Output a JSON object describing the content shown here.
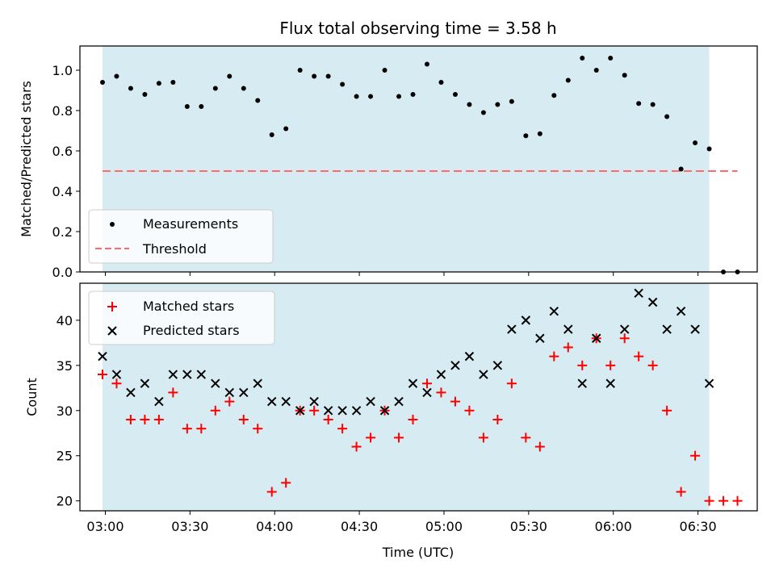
{
  "chart_data": [
    {
      "type": "scatter",
      "title": "Flux total observing time = 3.58 h",
      "ylabel": "Matched/Predicted stars",
      "xlabel": "",
      "ylim": [
        0,
        1.12
      ],
      "yticks": [
        0.0,
        0.2,
        0.4,
        0.6,
        0.8,
        1.0
      ],
      "ytick_labels": [
        "0.0",
        "0.2",
        "0.4",
        "0.6",
        "0.8",
        "1.0"
      ],
      "shaded_span": {
        "x0": "02:59",
        "x1": "06:34",
        "color": "#add8e6"
      },
      "threshold": {
        "name": "Threshold",
        "y": 0.5,
        "x0": "02:59",
        "x1": "06:44",
        "color": "#ff6b6b",
        "style": "dashed"
      },
      "legend": {
        "placement": "lower-left",
        "items": [
          "Measurements",
          "Threshold"
        ]
      },
      "series": [
        {
          "name": "Measurements",
          "marker": "dot",
          "color": "#000000",
          "x": [
            "02:59",
            "03:04",
            "03:09",
            "03:14",
            "03:19",
            "03:24",
            "03:29",
            "03:34",
            "03:39",
            "03:44",
            "03:49",
            "03:54",
            "03:59",
            "04:04",
            "04:09",
            "04:14",
            "04:19",
            "04:24",
            "04:29",
            "04:34",
            "04:39",
            "04:44",
            "04:49",
            "04:54",
            "04:59",
            "05:04",
            "05:09",
            "05:14",
            "05:19",
            "05:24",
            "05:29",
            "05:34",
            "05:39",
            "05:44",
            "05:49",
            "05:54",
            "05:59",
            "06:04",
            "06:09",
            "06:14",
            "06:19",
            "06:24",
            "06:29",
            "06:34",
            "06:39",
            "06:44"
          ],
          "y": [
            0.94,
            0.97,
            0.91,
            0.88,
            0.935,
            0.94,
            0.82,
            0.82,
            0.91,
            0.97,
            0.91,
            0.85,
            0.68,
            0.71,
            1.0,
            0.97,
            0.97,
            0.93,
            0.87,
            0.87,
            1.0,
            0.87,
            0.88,
            1.03,
            0.94,
            0.88,
            0.83,
            0.79,
            0.83,
            0.845,
            0.675,
            0.685,
            0.875,
            0.95,
            1.06,
            1.0,
            1.06,
            0.975,
            0.835,
            0.83,
            0.77,
            0.51,
            0.64,
            0.61,
            0.0,
            0.0
          ]
        }
      ]
    },
    {
      "type": "scatter",
      "title": "",
      "ylabel": "Count",
      "xlabel": "Time (UTC)",
      "ylim": [
        18.9,
        44.1
      ],
      "yticks": [
        20,
        25,
        30,
        35,
        40
      ],
      "ytick_labels": [
        "20",
        "25",
        "30",
        "35",
        "40"
      ],
      "xlim": [
        "02:51",
        "06:51"
      ],
      "xticks": [
        "03:00",
        "03:30",
        "04:00",
        "04:30",
        "05:00",
        "05:30",
        "06:00",
        "06:30"
      ],
      "shaded_span": {
        "x0": "02:59",
        "x1": "06:34",
        "color": "#add8e6"
      },
      "legend": {
        "placement": "upper-left",
        "items": [
          "Matched stars",
          "Predicted stars"
        ]
      },
      "series": [
        {
          "name": "Matched stars",
          "marker": "plus",
          "color": "#ff0000",
          "x": [
            "02:59",
            "03:04",
            "03:09",
            "03:14",
            "03:19",
            "03:24",
            "03:29",
            "03:34",
            "03:39",
            "03:44",
            "03:49",
            "03:54",
            "03:59",
            "04:04",
            "04:09",
            "04:14",
            "04:19",
            "04:24",
            "04:29",
            "04:34",
            "04:39",
            "04:44",
            "04:49",
            "04:54",
            "04:59",
            "05:04",
            "05:09",
            "05:14",
            "05:19",
            "05:24",
            "05:29",
            "05:34",
            "05:39",
            "05:44",
            "05:49",
            "05:54",
            "05:59",
            "06:04",
            "06:09",
            "06:14",
            "06:19",
            "06:24",
            "06:29",
            "06:34",
            "06:39",
            "06:44"
          ],
          "y": [
            34,
            33,
            29,
            29,
            29,
            32,
            28,
            28,
            30,
            31,
            29,
            28,
            21,
            22,
            30,
            30,
            29,
            28,
            26,
            27,
            30,
            27,
            29,
            33,
            32,
            31,
            30,
            27,
            29,
            33,
            27,
            26,
            36,
            37,
            35,
            38,
            35,
            38,
            36,
            35,
            30,
            21,
            25,
            20,
            20,
            20
          ]
        },
        {
          "name": "Predicted stars",
          "marker": "x",
          "color": "#000000",
          "x": [
            "02:59",
            "03:04",
            "03:09",
            "03:14",
            "03:19",
            "03:24",
            "03:29",
            "03:34",
            "03:39",
            "03:44",
            "03:49",
            "03:54",
            "03:59",
            "04:04",
            "04:09",
            "04:14",
            "04:19",
            "04:24",
            "04:29",
            "04:34",
            "04:39",
            "04:44",
            "04:49",
            "04:54",
            "04:59",
            "05:04",
            "05:09",
            "05:14",
            "05:19",
            "05:24",
            "05:29",
            "05:34",
            "05:39",
            "05:44",
            "05:49",
            "05:54",
            "05:59",
            "06:04",
            "06:09",
            "06:14",
            "06:19",
            "06:24",
            "06:29",
            "06:34"
          ],
          "y": [
            36,
            34,
            32,
            33,
            31,
            34,
            34,
            34,
            33,
            32,
            32,
            33,
            31,
            31,
            30,
            31,
            30,
            30,
            30,
            31,
            30,
            31,
            33,
            32,
            34,
            35,
            36,
            34,
            35,
            39,
            40,
            38,
            41,
            39,
            33,
            38,
            33,
            39,
            43,
            42,
            39,
            41,
            39,
            33
          ]
        }
      ]
    }
  ]
}
